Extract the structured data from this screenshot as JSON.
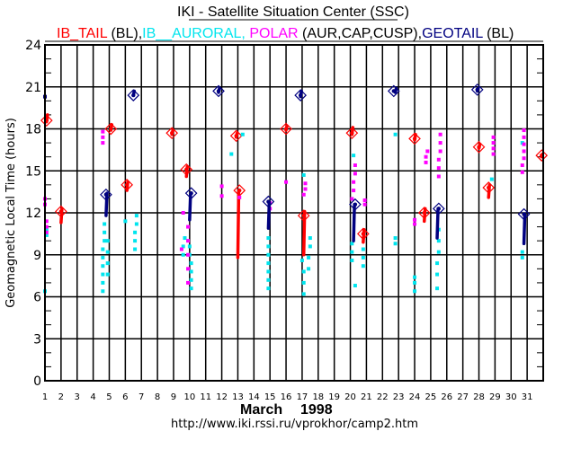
{
  "chart_data": {
    "type": "scatter",
    "title": "IKI - Satellite Situation Center (SSC)",
    "legend": [
      {
        "text": "IB_TAIL",
        "color": "#ff0000"
      },
      {
        "text": " (BL),",
        "color": "#000000"
      },
      {
        "text": "IB__AURORAL,",
        "color": "#00e5ee"
      },
      {
        "text": " POLAR",
        "color": "#ff00ff"
      },
      {
        "text": " (AUR,CAP,CUSP),",
        "color": "#000000"
      },
      {
        "text": "GEOTAIL",
        "color": "#000080"
      },
      {
        "text": " (BL)",
        "color": "#000000"
      }
    ],
    "legend_placement": "top",
    "xlabel": "March    1998",
    "xlabel_month": "March",
    "xlabel_year": "1998",
    "ylabel": "Geomagnetic Local Time (hours)",
    "footer": "http://www.iki.rssi.ru/vprokhor/camp2.htm",
    "xlim": [
      1,
      32
    ],
    "ylim": [
      0,
      24
    ],
    "x_ticks": [
      "1",
      "2",
      "3",
      "4",
      "5",
      "6",
      "7",
      "8",
      "9",
      "10",
      "11",
      "12",
      "13",
      "14",
      "15",
      "16",
      "17",
      "18",
      "19",
      "20",
      "21",
      "22",
      "23",
      "24",
      "25",
      "26",
      "27",
      "28",
      "29",
      "30",
      "31"
    ],
    "y_ticks": [
      "0",
      "3",
      "6",
      "9",
      "12",
      "15",
      "18",
      "21",
      "24"
    ],
    "grid": true,
    "colors": {
      "ib_tail": "#ff0000",
      "ib_auroral": "#00e5ee",
      "polar": "#ff00ff",
      "geotail": "#000080"
    },
    "series": [
      {
        "name": "IB_TAIL",
        "color": "#ff0000",
        "markers": [
          {
            "day": 1.1,
            "hour": 18.6
          },
          {
            "day": 2.0,
            "hour": 12.1
          },
          {
            "day": 5.1,
            "hour": 18.0
          },
          {
            "day": 6.1,
            "hour": 14.0
          },
          {
            "day": 8.9,
            "hour": 17.7
          },
          {
            "day": 9.8,
            "hour": 15.1
          },
          {
            "day": 12.9,
            "hour": 17.5
          },
          {
            "day": 13.1,
            "hour": 13.6
          },
          {
            "day": 16.0,
            "hour": 18.0
          },
          {
            "day": 17.1,
            "hour": 11.8
          },
          {
            "day": 20.1,
            "hour": 17.7
          },
          {
            "day": 20.8,
            "hour": 10.5
          },
          {
            "day": 24.0,
            "hour": 17.3
          },
          {
            "day": 24.6,
            "hour": 12.0
          },
          {
            "day": 28.0,
            "hour": 16.7
          },
          {
            "day": 28.6,
            "hour": 13.8
          },
          {
            "day": 31.9,
            "hour": 16.1
          }
        ],
        "tracks": [
          {
            "day": 1.1,
            "from": 18.5,
            "to": 19.0
          },
          {
            "day": 2.0,
            "from": 11.3,
            "to": 12.3
          },
          {
            "day": 5.1,
            "from": 17.9,
            "to": 18.3
          },
          {
            "day": 6.1,
            "from": 13.6,
            "to": 14.2
          },
          {
            "day": 8.9,
            "from": 17.6,
            "to": 17.9
          },
          {
            "day": 9.8,
            "from": 14.6,
            "to": 15.3
          },
          {
            "day": 12.9,
            "from": 17.4,
            "to": 17.7
          },
          {
            "day": 13.0,
            "from": 8.8,
            "to": 13.6
          },
          {
            "day": 16.0,
            "from": 17.9,
            "to": 18.2
          },
          {
            "day": 17.1,
            "from": 9.0,
            "to": 12.1
          },
          {
            "day": 20.1,
            "from": 17.6,
            "to": 18.1
          },
          {
            "day": 20.8,
            "from": 9.9,
            "to": 10.8
          },
          {
            "day": 24.0,
            "from": 17.2,
            "to": 17.6
          },
          {
            "day": 24.6,
            "from": 11.4,
            "to": 12.3
          },
          {
            "day": 28.0,
            "from": 16.6,
            "to": 16.9
          },
          {
            "day": 28.6,
            "from": 13.1,
            "to": 14.0
          },
          {
            "day": 31.9,
            "from": 16.0,
            "to": 16.2
          }
        ]
      },
      {
        "name": "IB_AURORAL",
        "color": "#00e5ee",
        "points": [
          {
            "day": 1.0,
            "hour": 6.4
          },
          {
            "day": 1.1,
            "hour": 10.4
          },
          {
            "day": 1.1,
            "hour": 10.8
          },
          {
            "day": 4.6,
            "hour": 6.4
          },
          {
            "day": 4.6,
            "hour": 7.0
          },
          {
            "day": 4.6,
            "hour": 7.6
          },
          {
            "day": 4.6,
            "hour": 8.2
          },
          {
            "day": 4.6,
            "hour": 8.8
          },
          {
            "day": 4.6,
            "hour": 9.4
          },
          {
            "day": 4.7,
            "hour": 10.0
          },
          {
            "day": 4.7,
            "hour": 10.6
          },
          {
            "day": 4.7,
            "hour": 11.2
          },
          {
            "day": 4.9,
            "hour": 7.6
          },
          {
            "day": 4.9,
            "hour": 8.4
          },
          {
            "day": 4.9,
            "hour": 9.2
          },
          {
            "day": 4.9,
            "hour": 10.0
          },
          {
            "day": 6.0,
            "hour": 11.4
          },
          {
            "day": 6.6,
            "hour": 9.4
          },
          {
            "day": 6.6,
            "hour": 10.0
          },
          {
            "day": 6.6,
            "hour": 10.6
          },
          {
            "day": 6.7,
            "hour": 11.2
          },
          {
            "day": 6.7,
            "hour": 11.8
          },
          {
            "day": 9.6,
            "hour": 9.0
          },
          {
            "day": 9.6,
            "hour": 9.6
          },
          {
            "day": 9.7,
            "hour": 10.2
          },
          {
            "day": 10.1,
            "hour": 6.6
          },
          {
            "day": 10.1,
            "hour": 7.2
          },
          {
            "day": 10.1,
            "hour": 7.8
          },
          {
            "day": 10.1,
            "hour": 8.4
          },
          {
            "day": 10.0,
            "hour": 9.0
          },
          {
            "day": 10.0,
            "hour": 9.6
          },
          {
            "day": 12.6,
            "hour": 16.2
          },
          {
            "day": 13.3,
            "hour": 17.6
          },
          {
            "day": 14.9,
            "hour": 6.6
          },
          {
            "day": 14.9,
            "hour": 7.2
          },
          {
            "day": 14.9,
            "hour": 7.8
          },
          {
            "day": 14.9,
            "hour": 8.4
          },
          {
            "day": 14.9,
            "hour": 9.0
          },
          {
            "day": 14.9,
            "hour": 9.6
          },
          {
            "day": 14.9,
            "hour": 10.2
          },
          {
            "day": 17.1,
            "hour": 6.2
          },
          {
            "day": 17.1,
            "hour": 7.0
          },
          {
            "day": 17.1,
            "hour": 7.8
          },
          {
            "day": 17.0,
            "hour": 8.6
          },
          {
            "day": 17.1,
            "hour": 14.7
          },
          {
            "day": 17.4,
            "hour": 8.0
          },
          {
            "day": 17.4,
            "hour": 8.8
          },
          {
            "day": 17.5,
            "hour": 9.6
          },
          {
            "day": 17.5,
            "hour": 10.2
          },
          {
            "day": 20.1,
            "hour": 8.6
          },
          {
            "day": 20.1,
            "hour": 9.2
          },
          {
            "day": 20.1,
            "hour": 9.8
          },
          {
            "day": 20.2,
            "hour": 16.1
          },
          {
            "day": 20.3,
            "hour": 6.8
          },
          {
            "day": 20.8,
            "hour": 8.2
          },
          {
            "day": 20.8,
            "hour": 8.8
          },
          {
            "day": 20.8,
            "hour": 9.4
          },
          {
            "day": 22.8,
            "hour": 9.8
          },
          {
            "day": 22.8,
            "hour": 10.2
          },
          {
            "day": 22.8,
            "hour": 17.6
          },
          {
            "day": 24.0,
            "hour": 6.4
          },
          {
            "day": 24.0,
            "hour": 7.0
          },
          {
            "day": 24.0,
            "hour": 7.4
          },
          {
            "day": 25.4,
            "hour": 6.6
          },
          {
            "day": 25.4,
            "hour": 7.6
          },
          {
            "day": 25.4,
            "hour": 8.4
          },
          {
            "day": 25.5,
            "hour": 9.2
          },
          {
            "day": 25.5,
            "hour": 10.0
          },
          {
            "day": 25.5,
            "hour": 10.8
          },
          {
            "day": 28.8,
            "hour": 14.4
          },
          {
            "day": 30.7,
            "hour": 8.8
          },
          {
            "day": 30.7,
            "hour": 9.2
          },
          {
            "day": 30.7,
            "hour": 17.0
          }
        ]
      },
      {
        "name": "POLAR",
        "color": "#ff00ff",
        "points": [
          {
            "day": 1.0,
            "hour": 12.6
          },
          {
            "day": 1.0,
            "hour": 13.0
          },
          {
            "day": 1.1,
            "hour": 10.6
          },
          {
            "day": 1.1,
            "hour": 11.0
          },
          {
            "day": 1.1,
            "hour": 11.4
          },
          {
            "day": 4.6,
            "hour": 17.0
          },
          {
            "day": 4.6,
            "hour": 17.4
          },
          {
            "day": 4.6,
            "hour": 17.8
          },
          {
            "day": 9.5,
            "hour": 9.4
          },
          {
            "day": 9.6,
            "hour": 12.0
          },
          {
            "day": 9.9,
            "hour": 7.0
          },
          {
            "day": 9.9,
            "hour": 8.0
          },
          {
            "day": 9.9,
            "hour": 9.0
          },
          {
            "day": 9.9,
            "hour": 10.0
          },
          {
            "day": 9.9,
            "hour": 11.0
          },
          {
            "day": 12.0,
            "hour": 13.2
          },
          {
            "day": 12.0,
            "hour": 13.9
          },
          {
            "day": 13.1,
            "hour": 13.1
          },
          {
            "day": 15.0,
            "hour": 12.3
          },
          {
            "day": 15.0,
            "hour": 12.7
          },
          {
            "day": 16.0,
            "hour": 14.2
          },
          {
            "day": 17.1,
            "hour": 13.3
          },
          {
            "day": 17.2,
            "hour": 13.7
          },
          {
            "day": 17.2,
            "hour": 14.1
          },
          {
            "day": 20.1,
            "hour": 13.0
          },
          {
            "day": 20.2,
            "hour": 13.6
          },
          {
            "day": 20.2,
            "hour": 14.2
          },
          {
            "day": 20.3,
            "hour": 14.8
          },
          {
            "day": 20.3,
            "hour": 15.4
          },
          {
            "day": 20.9,
            "hour": 12.6
          },
          {
            "day": 20.9,
            "hour": 12.9
          },
          {
            "day": 24.0,
            "hour": 11.2
          },
          {
            "day": 24.0,
            "hour": 11.5
          },
          {
            "day": 24.7,
            "hour": 15.6
          },
          {
            "day": 24.7,
            "hour": 16.0
          },
          {
            "day": 24.8,
            "hour": 16.4
          },
          {
            "day": 25.5,
            "hour": 14.6
          },
          {
            "day": 25.5,
            "hour": 15.2
          },
          {
            "day": 25.5,
            "hour": 15.8
          },
          {
            "day": 25.6,
            "hour": 16.4
          },
          {
            "day": 25.6,
            "hour": 17.0
          },
          {
            "day": 25.6,
            "hour": 17.6
          },
          {
            "day": 28.9,
            "hour": 16.2
          },
          {
            "day": 28.9,
            "hour": 16.6
          },
          {
            "day": 28.9,
            "hour": 17.0
          },
          {
            "day": 28.9,
            "hour": 17.4
          },
          {
            "day": 30.7,
            "hour": 14.9
          },
          {
            "day": 30.7,
            "hour": 15.4
          },
          {
            "day": 30.8,
            "hour": 15.9
          },
          {
            "day": 30.8,
            "hour": 16.4
          },
          {
            "day": 30.8,
            "hour": 16.9
          },
          {
            "day": 30.8,
            "hour": 17.4
          },
          {
            "day": 30.8,
            "hour": 17.9
          }
        ]
      },
      {
        "name": "GEOTAIL",
        "color": "#000080",
        "markers": [
          {
            "day": 4.8,
            "hour": 13.3
          },
          {
            "day": 6.5,
            "hour": 20.4
          },
          {
            "day": 10.1,
            "hour": 13.4
          },
          {
            "day": 11.8,
            "hour": 20.7
          },
          {
            "day": 14.9,
            "hour": 12.8
          },
          {
            "day": 16.9,
            "hour": 20.4
          },
          {
            "day": 20.3,
            "hour": 12.6
          },
          {
            "day": 22.7,
            "hour": 20.7
          },
          {
            "day": 25.5,
            "hour": 12.3
          },
          {
            "day": 27.9,
            "hour": 20.8
          },
          {
            "day": 30.8,
            "hour": 11.9
          }
        ],
        "tracks": [
          {
            "day": 4.8,
            "from": 11.8,
            "to": 13.4
          },
          {
            "day": 6.5,
            "from": 20.4,
            "to": 20.7
          },
          {
            "day": 10.0,
            "from": 11.5,
            "to": 13.3
          },
          {
            "day": 11.8,
            "from": 20.6,
            "to": 20.9
          },
          {
            "day": 14.9,
            "from": 10.9,
            "to": 12.8
          },
          {
            "day": 16.9,
            "from": 20.3,
            "to": 20.7
          },
          {
            "day": 20.2,
            "from": 10.0,
            "to": 12.6
          },
          {
            "day": 22.8,
            "from": 20.6,
            "to": 20.9
          },
          {
            "day": 25.4,
            "from": 10.2,
            "to": 12.3
          },
          {
            "day": 27.9,
            "from": 20.7,
            "to": 20.9
          },
          {
            "day": 30.8,
            "from": 9.8,
            "to": 11.9
          }
        ],
        "points": [
          {
            "day": 1.0,
            "hour": 20.3
          }
        ]
      }
    ]
  }
}
